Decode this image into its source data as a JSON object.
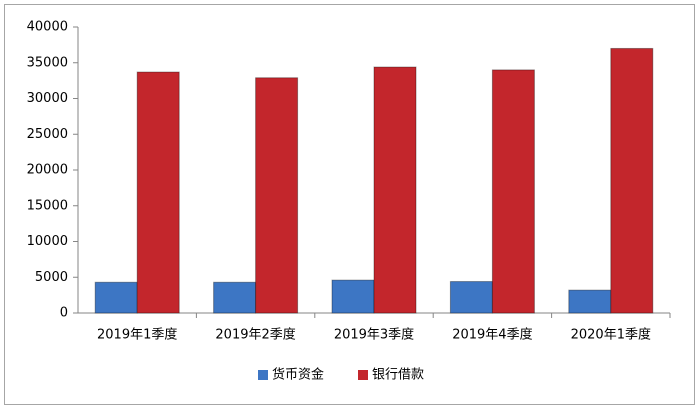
{
  "chart_data": {
    "type": "bar",
    "categories": [
      "2019年1季度",
      "2019年2季度",
      "2019年3季度",
      "2019年4季度",
      "2020年1季度"
    ],
    "series": [
      {
        "name": "货币资金",
        "color": "#3d76c4",
        "values": [
          4300,
          4300,
          4600,
          4400,
          3200
        ]
      },
      {
        "name": "银行借款",
        "color": "#c3262c",
        "values": [
          33700,
          32900,
          34400,
          34000,
          37000
        ]
      }
    ],
    "ylim": [
      0,
      40000
    ],
    "yticks": [
      0,
      5000,
      10000,
      15000,
      20000,
      25000,
      30000,
      35000,
      40000
    ],
    "grid": false,
    "legend": "bottom"
  }
}
